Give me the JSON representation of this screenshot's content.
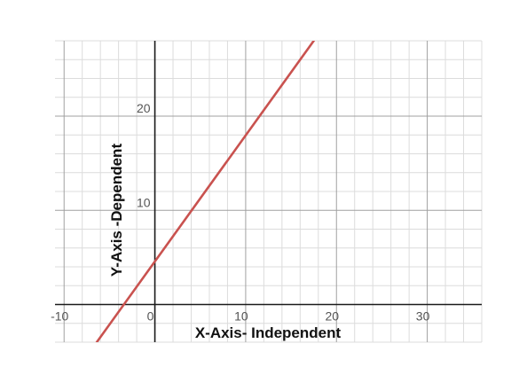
{
  "chart_data": {
    "type": "line",
    "xlabel": "X-Axis- Independent",
    "ylabel": "Y-Axis -Dependent",
    "xlim": [
      -11,
      36
    ],
    "ylim": [
      -4,
      28
    ],
    "x_ticks": [
      -10,
      0,
      10,
      20,
      30
    ],
    "y_ticks": [
      10,
      20
    ],
    "x_minor_step": 2,
    "y_minor_step": 2,
    "grid": true,
    "series": [
      {
        "color": "#c9524f",
        "x": [
          -6.4,
          17.5
        ],
        "y": [
          -4,
          28
        ]
      }
    ]
  }
}
